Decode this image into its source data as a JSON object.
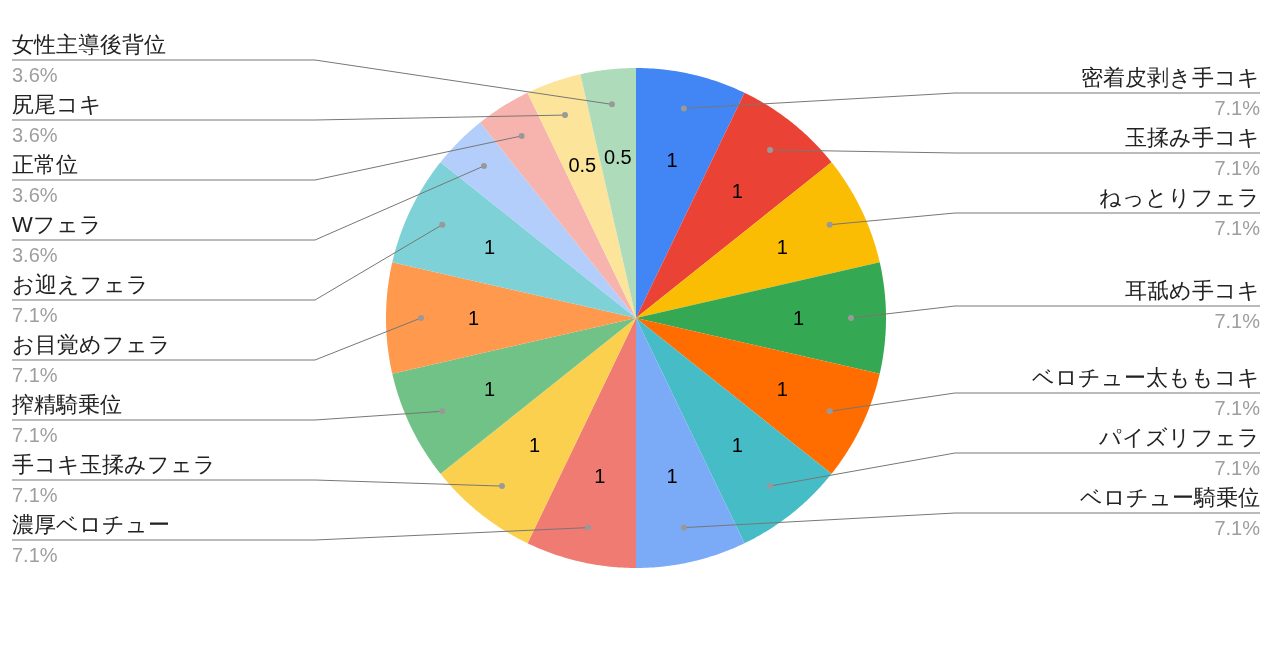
{
  "chart_data": {
    "type": "pie",
    "categories": [
      "密着皮剥き手コキ",
      "玉揉み手コキ",
      "ねっとりフェラ",
      "耳舐め手コキ",
      "ベロチュー太ももコキ",
      "パイズリフェラ",
      "ベロチュー騎乗位",
      "濃厚ベロチュー",
      "手コキ玉揉みフェラ",
      "搾精騎乗位",
      "お目覚めフェラ",
      "お迎えフェラ",
      "Wフェラ",
      "正常位",
      "尻尾コキ",
      "女性主導後背位"
    ],
    "values": [
      1,
      1,
      1,
      1,
      1,
      1,
      1,
      1,
      1,
      1,
      1,
      1,
      0.5,
      0.5,
      0.5,
      0.5
    ],
    "value_labels": [
      "1",
      "1",
      "1",
      "1",
      "1",
      "1",
      "1",
      "1",
      "1",
      "1",
      "1",
      "1",
      null,
      null,
      "0.5",
      "0.5"
    ],
    "colors": [
      "#4285f4",
      "#ea4335",
      "#fbbc04",
      "#34a853",
      "#ff6d01",
      "#46bdc6",
      "#7baaf7",
      "#f07b72",
      "#fcd04f",
      "#71c287",
      "#ff994d",
      "#7ed1d7",
      "#b3cefb",
      "#f7b4ae",
      "#fde49b",
      "#aedcba"
    ],
    "annotations": [
      "7.1%",
      "7.1%",
      "7.1%",
      "7.1%",
      "7.1%",
      "7.1%",
      "7.1%",
      "7.1%",
      "7.1%",
      "7.1%",
      "7.1%",
      "7.1%",
      "3.6%",
      "3.6%",
      "3.6%",
      "3.6%"
    ]
  }
}
